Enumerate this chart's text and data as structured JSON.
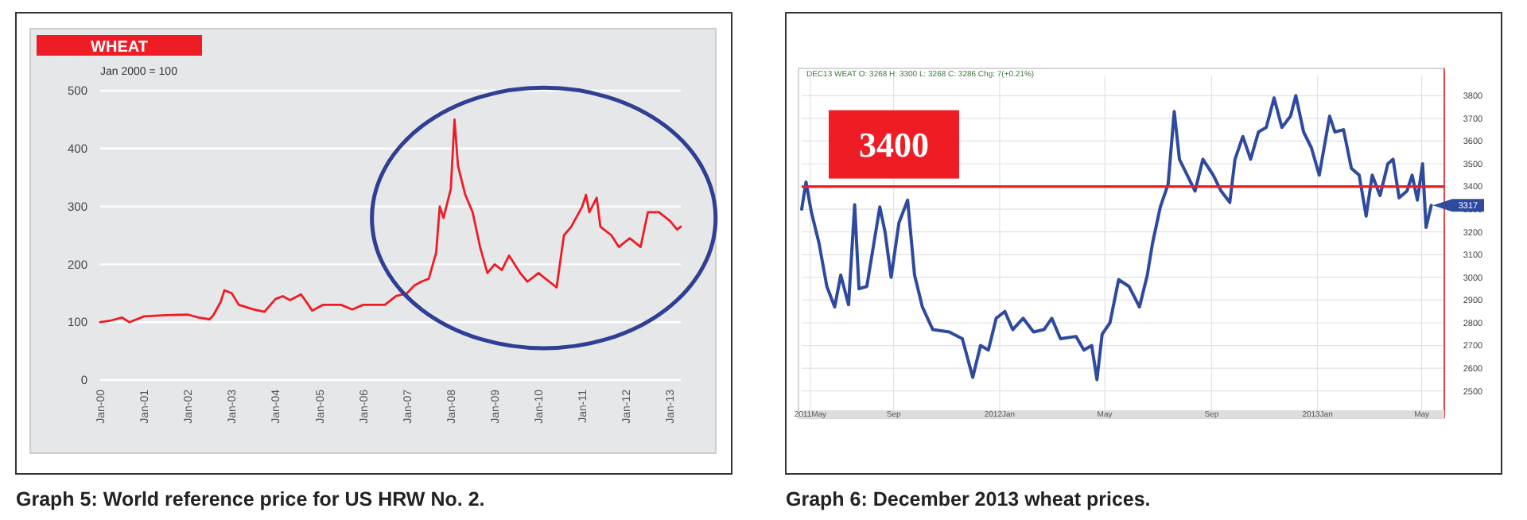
{
  "chart_data": [
    {
      "type": "line",
      "title": "WHEAT",
      "ylabel": "Jan 2000 = 100",
      "grid": "y",
      "x": [
        "2000-01",
        "2000-04",
        "2000-07",
        "2000-09",
        "2001-01",
        "2001-07",
        "2002-01",
        "2002-04",
        "2002-07",
        "2002-08",
        "2002-10",
        "2002-11",
        "2003-01",
        "2003-03",
        "2003-07",
        "2003-10",
        "2004-01",
        "2004-03",
        "2004-05",
        "2004-08",
        "2004-10",
        "2004-11",
        "2005-02",
        "2005-07",
        "2005-10",
        "2006-01",
        "2006-07",
        "2006-10",
        "2007-01",
        "2007-03",
        "2007-05",
        "2007-07",
        "2007-09",
        "2007-10",
        "2007-11",
        "2008-01",
        "2008-02",
        "2008-03",
        "2008-05",
        "2008-07",
        "2008-09",
        "2008-11",
        "2009-01",
        "2009-03",
        "2009-05",
        "2009-08",
        "2009-10",
        "2010-01",
        "2010-03",
        "2010-06",
        "2010-08",
        "2010-10",
        "2011-01",
        "2011-02",
        "2011-03",
        "2011-05",
        "2011-06",
        "2011-09",
        "2011-11",
        "2012-02",
        "2012-05",
        "2012-07",
        "2012-10",
        "2013-01",
        "2013-03",
        "2013-04"
      ],
      "series": [
        {
          "color": "#ee1c25",
          "values": [
            100,
            103,
            108,
            100,
            110,
            112,
            113,
            108,
            105,
            112,
            135,
            155,
            150,
            130,
            122,
            118,
            140,
            145,
            138,
            148,
            130,
            120,
            130,
            130,
            122,
            130,
            130,
            145,
            150,
            163,
            170,
            175,
            220,
            300,
            280,
            330,
            450,
            370,
            320,
            290,
            230,
            185,
            200,
            190,
            215,
            185,
            170,
            185,
            175,
            160,
            250,
            265,
            300,
            320,
            290,
            315,
            265,
            250,
            230,
            245,
            230,
            290,
            290,
            275,
            260,
            265
          ]
        }
      ],
      "xlim": [
        "2000-01",
        "2013-04"
      ],
      "xticks": [
        {
          "value": "2000-01",
          "label": "Jan-00"
        },
        {
          "value": "2001-01",
          "label": "Jan-01"
        },
        {
          "value": "2002-01",
          "label": "Jan-02"
        },
        {
          "value": "2003-01",
          "label": "Jan-03"
        },
        {
          "value": "2004-01",
          "label": "Jan-04"
        },
        {
          "value": "2005-01",
          "label": "Jan-05"
        },
        {
          "value": "2006-01",
          "label": "Jan-06"
        },
        {
          "value": "2007-01",
          "label": "Jan-07"
        },
        {
          "value": "2008-01",
          "label": "Jan-08"
        },
        {
          "value": "2009-01",
          "label": "Jan-09"
        },
        {
          "value": "2010-01",
          "label": "Jan-10"
        },
        {
          "value": "2011-01",
          "label": "Jan-11"
        },
        {
          "value": "2012-01",
          "label": "Jan-12"
        },
        {
          "value": "2013-01",
          "label": "Jan-13"
        }
      ],
      "ylim": [
        0,
        500
      ],
      "yticks": [
        0,
        100,
        200,
        300,
        400,
        500
      ],
      "annotations": [
        "Graph 5: World reference price for US HRW No. 2."
      ]
    },
    {
      "type": "line",
      "subtitle": "DEC13 WEAT O: 3268 H: 3300 L: 3268 C: 3286 Chg: 7(+0.21%)",
      "grid": true,
      "x": [
        "2011-05-18",
        "2011-05-23",
        "2011-05-29",
        "2011-06-07",
        "2011-06-16",
        "2011-06-25",
        "2011-07-02",
        "2011-07-11",
        "2011-07-18",
        "2011-07-23",
        "2011-08-01",
        "2011-08-10",
        "2011-08-16",
        "2011-08-22",
        "2011-08-29",
        "2011-09-07",
        "2011-09-17",
        "2011-09-25",
        "2011-10-04",
        "2011-10-16",
        "2011-11-04",
        "2011-11-19",
        "2011-12-01",
        "2011-12-10",
        "2011-12-19",
        "2011-12-28",
        "2012-01-07",
        "2012-01-16",
        "2012-01-28",
        "2012-02-09",
        "2012-02-21",
        "2012-03-01",
        "2012-03-11",
        "2012-03-29",
        "2012-04-07",
        "2012-04-16",
        "2012-04-22",
        "2012-04-28",
        "2012-05-07",
        "2012-05-17",
        "2012-05-29",
        "2012-06-10",
        "2012-06-19",
        "2012-06-25",
        "2012-07-04",
        "2012-07-13",
        "2012-07-20",
        "2012-07-26",
        "2012-08-04",
        "2012-08-13",
        "2012-08-22",
        "2012-09-03",
        "2012-09-12",
        "2012-09-22",
        "2012-09-28",
        "2012-10-07",
        "2012-10-16",
        "2012-10-25",
        "2012-11-03",
        "2012-11-12",
        "2012-11-21",
        "2012-12-01",
        "2012-12-07",
        "2012-12-16",
        "2012-12-25",
        "2013-01-03",
        "2013-01-15",
        "2013-01-21",
        "2013-01-31",
        "2013-02-09",
        "2013-02-18",
        "2013-02-26",
        "2013-03-05",
        "2013-03-14",
        "2013-03-23",
        "2013-03-29",
        "2013-04-05",
        "2013-04-14",
        "2013-04-20",
        "2013-04-26",
        "2013-05-02",
        "2013-05-06",
        "2013-05-12"
      ],
      "series": [
        {
          "color": "#2e4a9e",
          "values": [
            3300,
            3420,
            3290,
            3150,
            2960,
            2870,
            3010,
            2880,
            3320,
            2950,
            2960,
            3170,
            3310,
            3200,
            3000,
            3240,
            3340,
            3010,
            2870,
            2770,
            2760,
            2730,
            2560,
            2700,
            2680,
            2820,
            2850,
            2770,
            2820,
            2760,
            2770,
            2820,
            2730,
            2740,
            2680,
            2700,
            2550,
            2750,
            2800,
            2990,
            2960,
            2870,
            3010,
            3150,
            3310,
            3410,
            3730,
            3520,
            3450,
            3380,
            3520,
            3450,
            3380,
            3330,
            3520,
            3620,
            3520,
            3640,
            3660,
            3790,
            3660,
            3710,
            3800,
            3640,
            3570,
            3450,
            3710,
            3640,
            3650,
            3480,
            3450,
            3270,
            3450,
            3360,
            3500,
            3520,
            3350,
            3380,
            3450,
            3340,
            3500,
            3220,
            3317
          ]
        }
      ],
      "xlim": [
        "2011-05-18",
        "2013-05-27"
      ],
      "xticks": [
        {
          "value": "2011-05-28",
          "label": "2011May"
        },
        {
          "value": "2011-09-01",
          "label": "Sep"
        },
        {
          "value": "2012-01-01",
          "label": "2012Jan"
        },
        {
          "value": "2012-05-01",
          "label": "May"
        },
        {
          "value": "2012-09-01",
          "label": "Sep"
        },
        {
          "value": "2013-01-01",
          "label": "2013Jan"
        },
        {
          "value": "2013-05-01",
          "label": "May"
        }
      ],
      "ylim": [
        2380,
        3920
      ],
      "yticks": [
        2500,
        2600,
        2700,
        2800,
        2900,
        3000,
        3100,
        3200,
        3300,
        3400,
        3500,
        3600,
        3700,
        3800
      ],
      "ref_lines": [
        {
          "axis": "y",
          "value": 3400,
          "label": "3400",
          "color": "#ee1c25"
        }
      ],
      "annotations": [
        {
          "text": "3317",
          "x": "2013-05-12",
          "y": 3317
        },
        "Graph 6: December 2013 wheat prices."
      ]
    }
  ]
}
